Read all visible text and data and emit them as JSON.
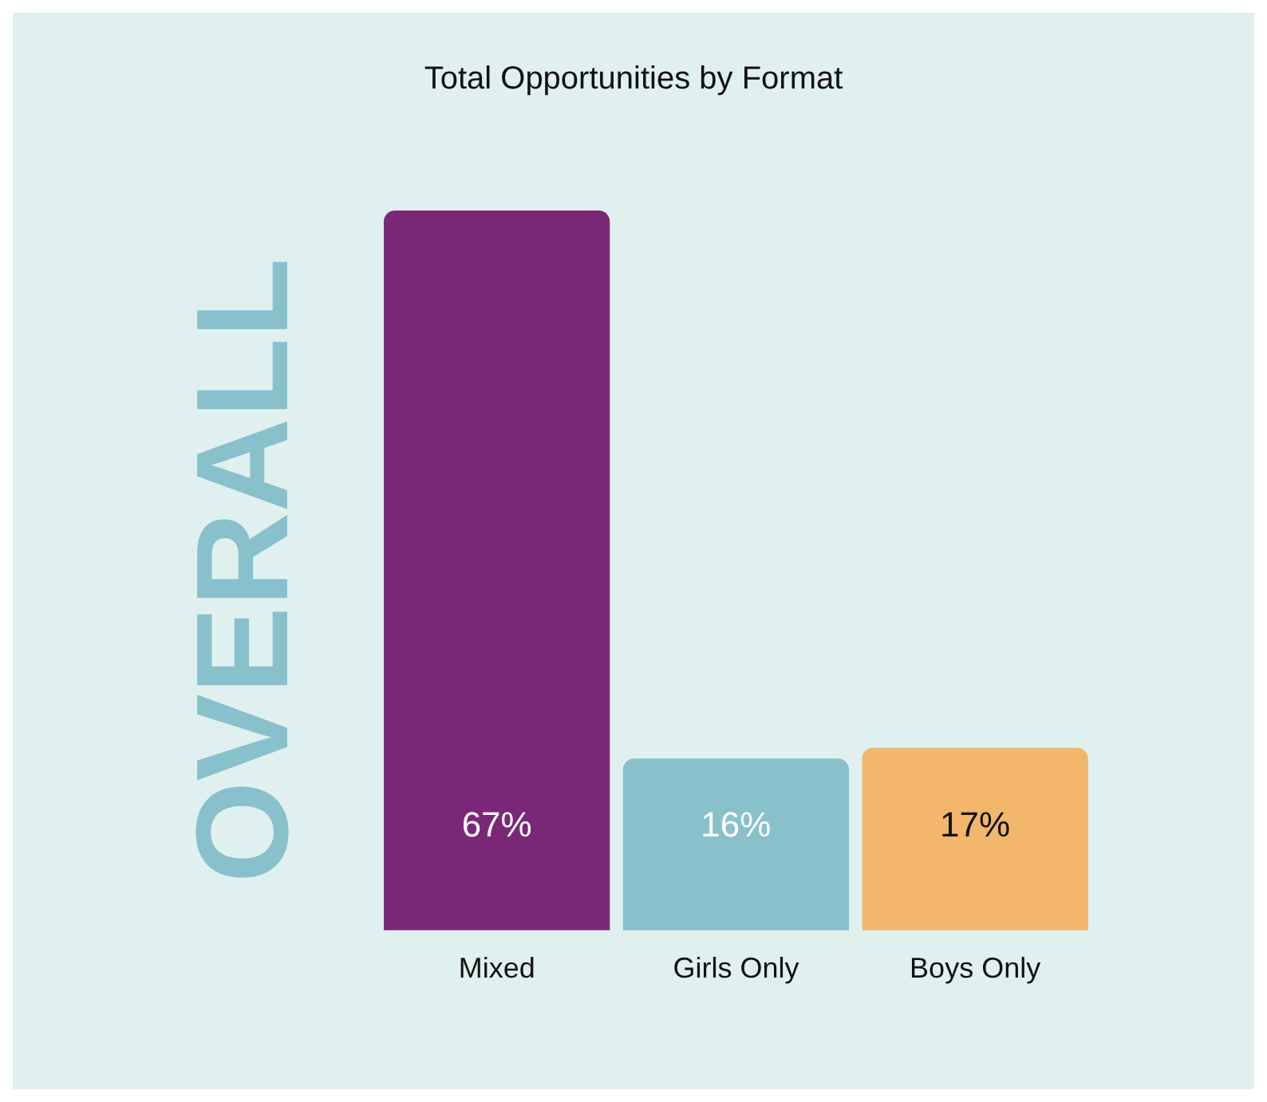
{
  "chart_data": {
    "type": "bar",
    "title": "Total Opportunities by Format",
    "ylabel": "OVERALL",
    "categories": [
      "Mixed",
      "Girls Only",
      "Boys Only"
    ],
    "values": [
      67,
      16,
      17
    ],
    "colors": [
      "#7b2777",
      "#88c1cc",
      "#f2b76b"
    ],
    "value_labels": [
      "67%",
      "16%",
      "17%"
    ],
    "grid": false,
    "legend": false
  }
}
